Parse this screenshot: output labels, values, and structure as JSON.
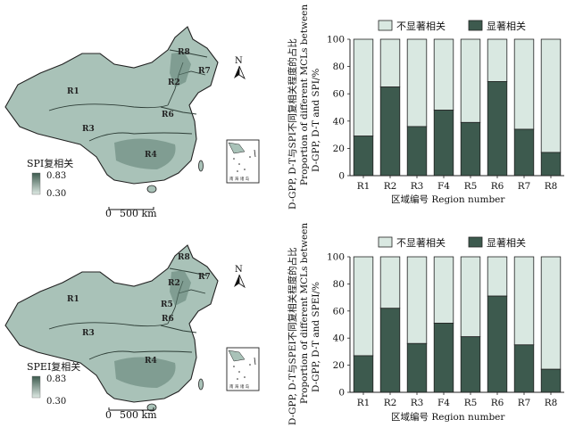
{
  "colors": {
    "dark": "#3d5a4e",
    "light": "#d9e8e1",
    "map_fill": "#a9c2b8",
    "map_dark": "#5f7f72",
    "stroke": "#222222"
  },
  "icons": [
    "north-arrow-icon",
    "scale-bar-icon",
    "south-china-sea-inset-icon"
  ],
  "panels": [
    {
      "map": {
        "regions": [
          "R1",
          "R2",
          "R3",
          "R4",
          "R6",
          "R7",
          "R8"
        ],
        "north": "N",
        "legend_title": "SPI复相关",
        "legend_max": "0.83",
        "legend_min": "0.30",
        "scale_zero": "0",
        "scale_label": "500 km",
        "inset_text": "南 海 诸 岛"
      },
      "chart_data": {
        "type": "bar",
        "stacked": true,
        "categories": [
          "R1",
          "R2",
          "R3",
          "F4",
          "R5",
          "R6",
          "R7",
          "R8"
        ],
        "series": [
          {
            "name": "显著相关",
            "values": [
              29,
              65,
              36,
              48,
              39,
              69,
              34,
              17
            ]
          },
          {
            "name": "不显著相关",
            "values": [
              71,
              35,
              64,
              52,
              61,
              31,
              66,
              83
            ]
          }
        ],
        "ylim": [
          0,
          100
        ],
        "yticks": [
          0,
          20,
          40,
          60,
          80,
          100
        ],
        "ylabel_lines": [
          "D-GPP, D-T与SPI不同复相关程度的占比",
          "Proportion of different MCLs between",
          "D-GPP, D-T and SPI/%"
        ],
        "xlabel": "区域编号  Region number",
        "legend": [
          "不显著相关",
          "显著相关"
        ],
        "legend_position": "top"
      }
    },
    {
      "map": {
        "regions": [
          "R1",
          "R2",
          "R3",
          "R4",
          "R5",
          "R6",
          "R7",
          "R8"
        ],
        "north": "N",
        "legend_title": "SPEI复相关",
        "legend_max": "0.83",
        "legend_min": "0.30",
        "scale_zero": "0",
        "scale_label": "500 km",
        "inset_text": "南 海 诸 岛"
      },
      "chart_data": {
        "type": "bar",
        "stacked": true,
        "categories": [
          "R1",
          "R2",
          "R3",
          "F4",
          "R5",
          "R6",
          "R7",
          "R8"
        ],
        "series": [
          {
            "name": "显著相关",
            "values": [
              27,
              62,
              36,
              51,
              41,
              71,
              35,
              17
            ]
          },
          {
            "name": "不显著相关",
            "values": [
              73,
              38,
              64,
              49,
              59,
              29,
              65,
              83
            ]
          }
        ],
        "ylim": [
          0,
          100
        ],
        "yticks": [
          0,
          20,
          40,
          60,
          80,
          100
        ],
        "ylabel_lines": [
          "D-GPP, D-T与SPEI不同复相关程度的占比",
          "Proportion of different MCLs between",
          "D-GPP, D-T and SPEI/%"
        ],
        "xlabel": "区域编号  Region number",
        "legend": [
          "不显著相关",
          "显著相关"
        ],
        "legend_position": "top"
      }
    }
  ]
}
